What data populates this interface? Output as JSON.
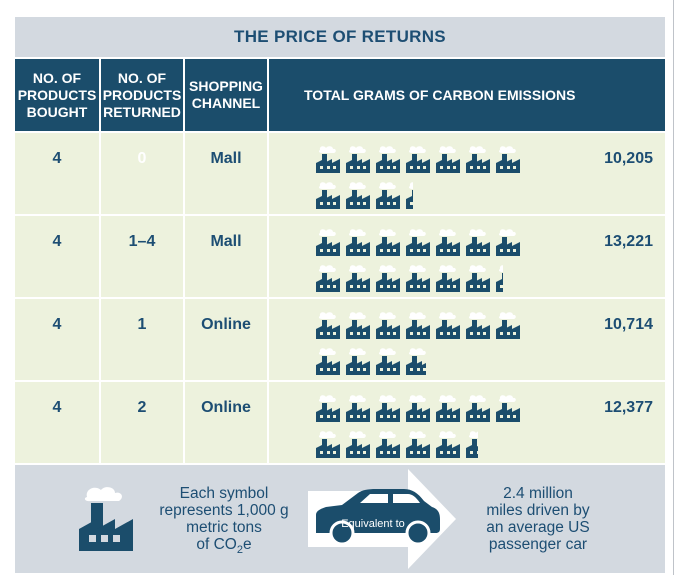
{
  "title": "THE PRICE OF RETURNS",
  "columns": {
    "bought": "NO. OF\nPRODUCTS\nBOUGHT",
    "returned": "NO. OF\nPRODUCTS\nRETURNED",
    "channel": "SHOPPING\nCHANNEL",
    "emissions": "TOTAL GRAMS OF CARBON EMISSIONS"
  },
  "rows": [
    {
      "bought": "4",
      "returned": "0",
      "channel": "Mall",
      "emissions": "10,205",
      "symbols": 10.2
    },
    {
      "bought": "4",
      "returned": "1–4",
      "channel": "Mall",
      "emissions": "13,221",
      "symbols": 13.2
    },
    {
      "bought": "4",
      "returned": "1",
      "channel": "Online",
      "emissions": "10,714",
      "symbols": 10.7
    },
    {
      "bought": "4",
      "returned": "2",
      "channel": "Online",
      "emissions": "12,377",
      "symbols": 12.4
    }
  ],
  "legend": {
    "symbol_line1": "Each symbol",
    "symbol_line2": "represents 1,000 g",
    "symbol_line3": "metric tons",
    "symbol_line4": "of CO",
    "symbol_sub": "2",
    "symbol_suffix": "e",
    "arrow_label": "Equivalent to",
    "equiv_line1": "2.4 million",
    "equiv_line2": "miles driven by",
    "equiv_line3": "an average US",
    "equiv_line4": "passenger car"
  },
  "colors": {
    "header_bg": "#1b4d6b",
    "title_bg": "#d3d9e0",
    "row_bg": "#edf2dd",
    "text": "#1d4e73",
    "icon": "#1b4d6b"
  },
  "icons": {
    "unit": "factory-icon",
    "equivalence": "car-icon"
  }
}
